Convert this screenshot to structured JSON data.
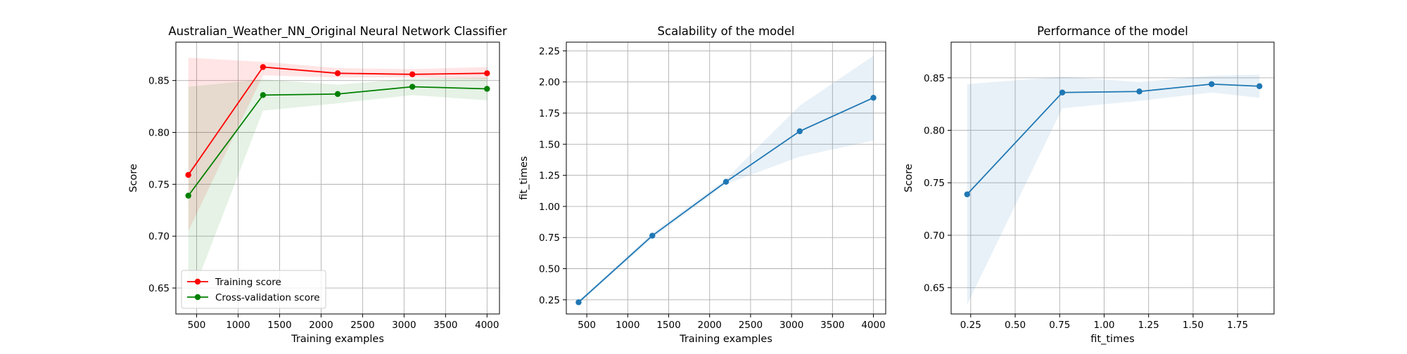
{
  "chart_data": [
    {
      "type": "line",
      "title": "Australian_Weather_NN_Original Neural Network Classifier",
      "xlabel": "Training examples",
      "ylabel": "Score",
      "xlim": [
        250,
        4150
      ],
      "ylim": [
        0.625,
        0.887
      ],
      "xticks": [
        500,
        1000,
        1500,
        2000,
        2500,
        3000,
        3500,
        4000
      ],
      "yticks": [
        0.65,
        0.7,
        0.75,
        0.8,
        0.85
      ],
      "ytick_decimals": 2,
      "grid": true,
      "legend_placement": "lower-left",
      "x": [
        400,
        1300,
        2200,
        3100,
        4000
      ],
      "series": [
        {
          "name": "Training score",
          "values": [
            0.759,
            0.863,
            0.857,
            0.856,
            0.857
          ],
          "band_lower": [
            0.705,
            0.855,
            0.853,
            0.853,
            0.851
          ],
          "band_upper": [
            0.872,
            0.868,
            0.862,
            0.861,
            0.863
          ],
          "color": "#ff0000",
          "band_color": "#ff0000"
        },
        {
          "name": "Cross-validation score",
          "values": [
            0.739,
            0.836,
            0.837,
            0.844,
            0.842
          ],
          "band_lower": [
            0.634,
            0.821,
            0.828,
            0.836,
            0.831
          ],
          "band_upper": [
            0.844,
            0.851,
            0.846,
            0.852,
            0.853
          ],
          "color": "#008000",
          "band_color": "#008000"
        }
      ]
    },
    {
      "type": "line",
      "title": "Scalability of the model",
      "xlabel": "Training examples",
      "ylabel": "fit_times",
      "xlim": [
        250,
        4150
      ],
      "ylim": [
        0.136,
        2.32
      ],
      "xticks": [
        500,
        1000,
        1500,
        2000,
        2500,
        3000,
        3500,
        4000
      ],
      "yticks": [
        0.25,
        0.5,
        0.75,
        1.0,
        1.25,
        1.5,
        1.75,
        2.0,
        2.25
      ],
      "ytick_decimals": 2,
      "grid": true,
      "x": [
        400,
        1300,
        2200,
        3100,
        4000
      ],
      "series": [
        {
          "values": [
            0.23,
            0.765,
            1.198,
            1.604,
            1.873
          ],
          "band_lower": [
            0.215,
            0.745,
            1.18,
            1.4,
            1.53
          ],
          "band_upper": [
            0.245,
            0.785,
            1.22,
            1.81,
            2.21
          ],
          "color": "#1f77b4",
          "band_color": "#1f77b4"
        }
      ]
    },
    {
      "type": "line",
      "title": "Performance of the model",
      "xlabel": "fit_times",
      "ylabel": "Score",
      "xlim": [
        0.14,
        1.955
      ],
      "ylim": [
        0.625,
        0.884
      ],
      "xticks": [
        0.25,
        0.5,
        0.75,
        1.0,
        1.25,
        1.5,
        1.75
      ],
      "yticks": [
        0.65,
        0.7,
        0.75,
        0.8,
        0.85
      ],
      "xtick_decimals": 2,
      "ytick_decimals": 2,
      "grid": true,
      "x": [
        0.23,
        0.765,
        1.198,
        1.604,
        1.873
      ],
      "series": [
        {
          "values": [
            0.739,
            0.836,
            0.837,
            0.844,
            0.842
          ],
          "band_lower": [
            0.634,
            0.821,
            0.828,
            0.836,
            0.831
          ],
          "band_upper": [
            0.844,
            0.851,
            0.846,
            0.852,
            0.853
          ],
          "color": "#1f77b4",
          "band_color": "#1f77b4"
        }
      ]
    }
  ]
}
